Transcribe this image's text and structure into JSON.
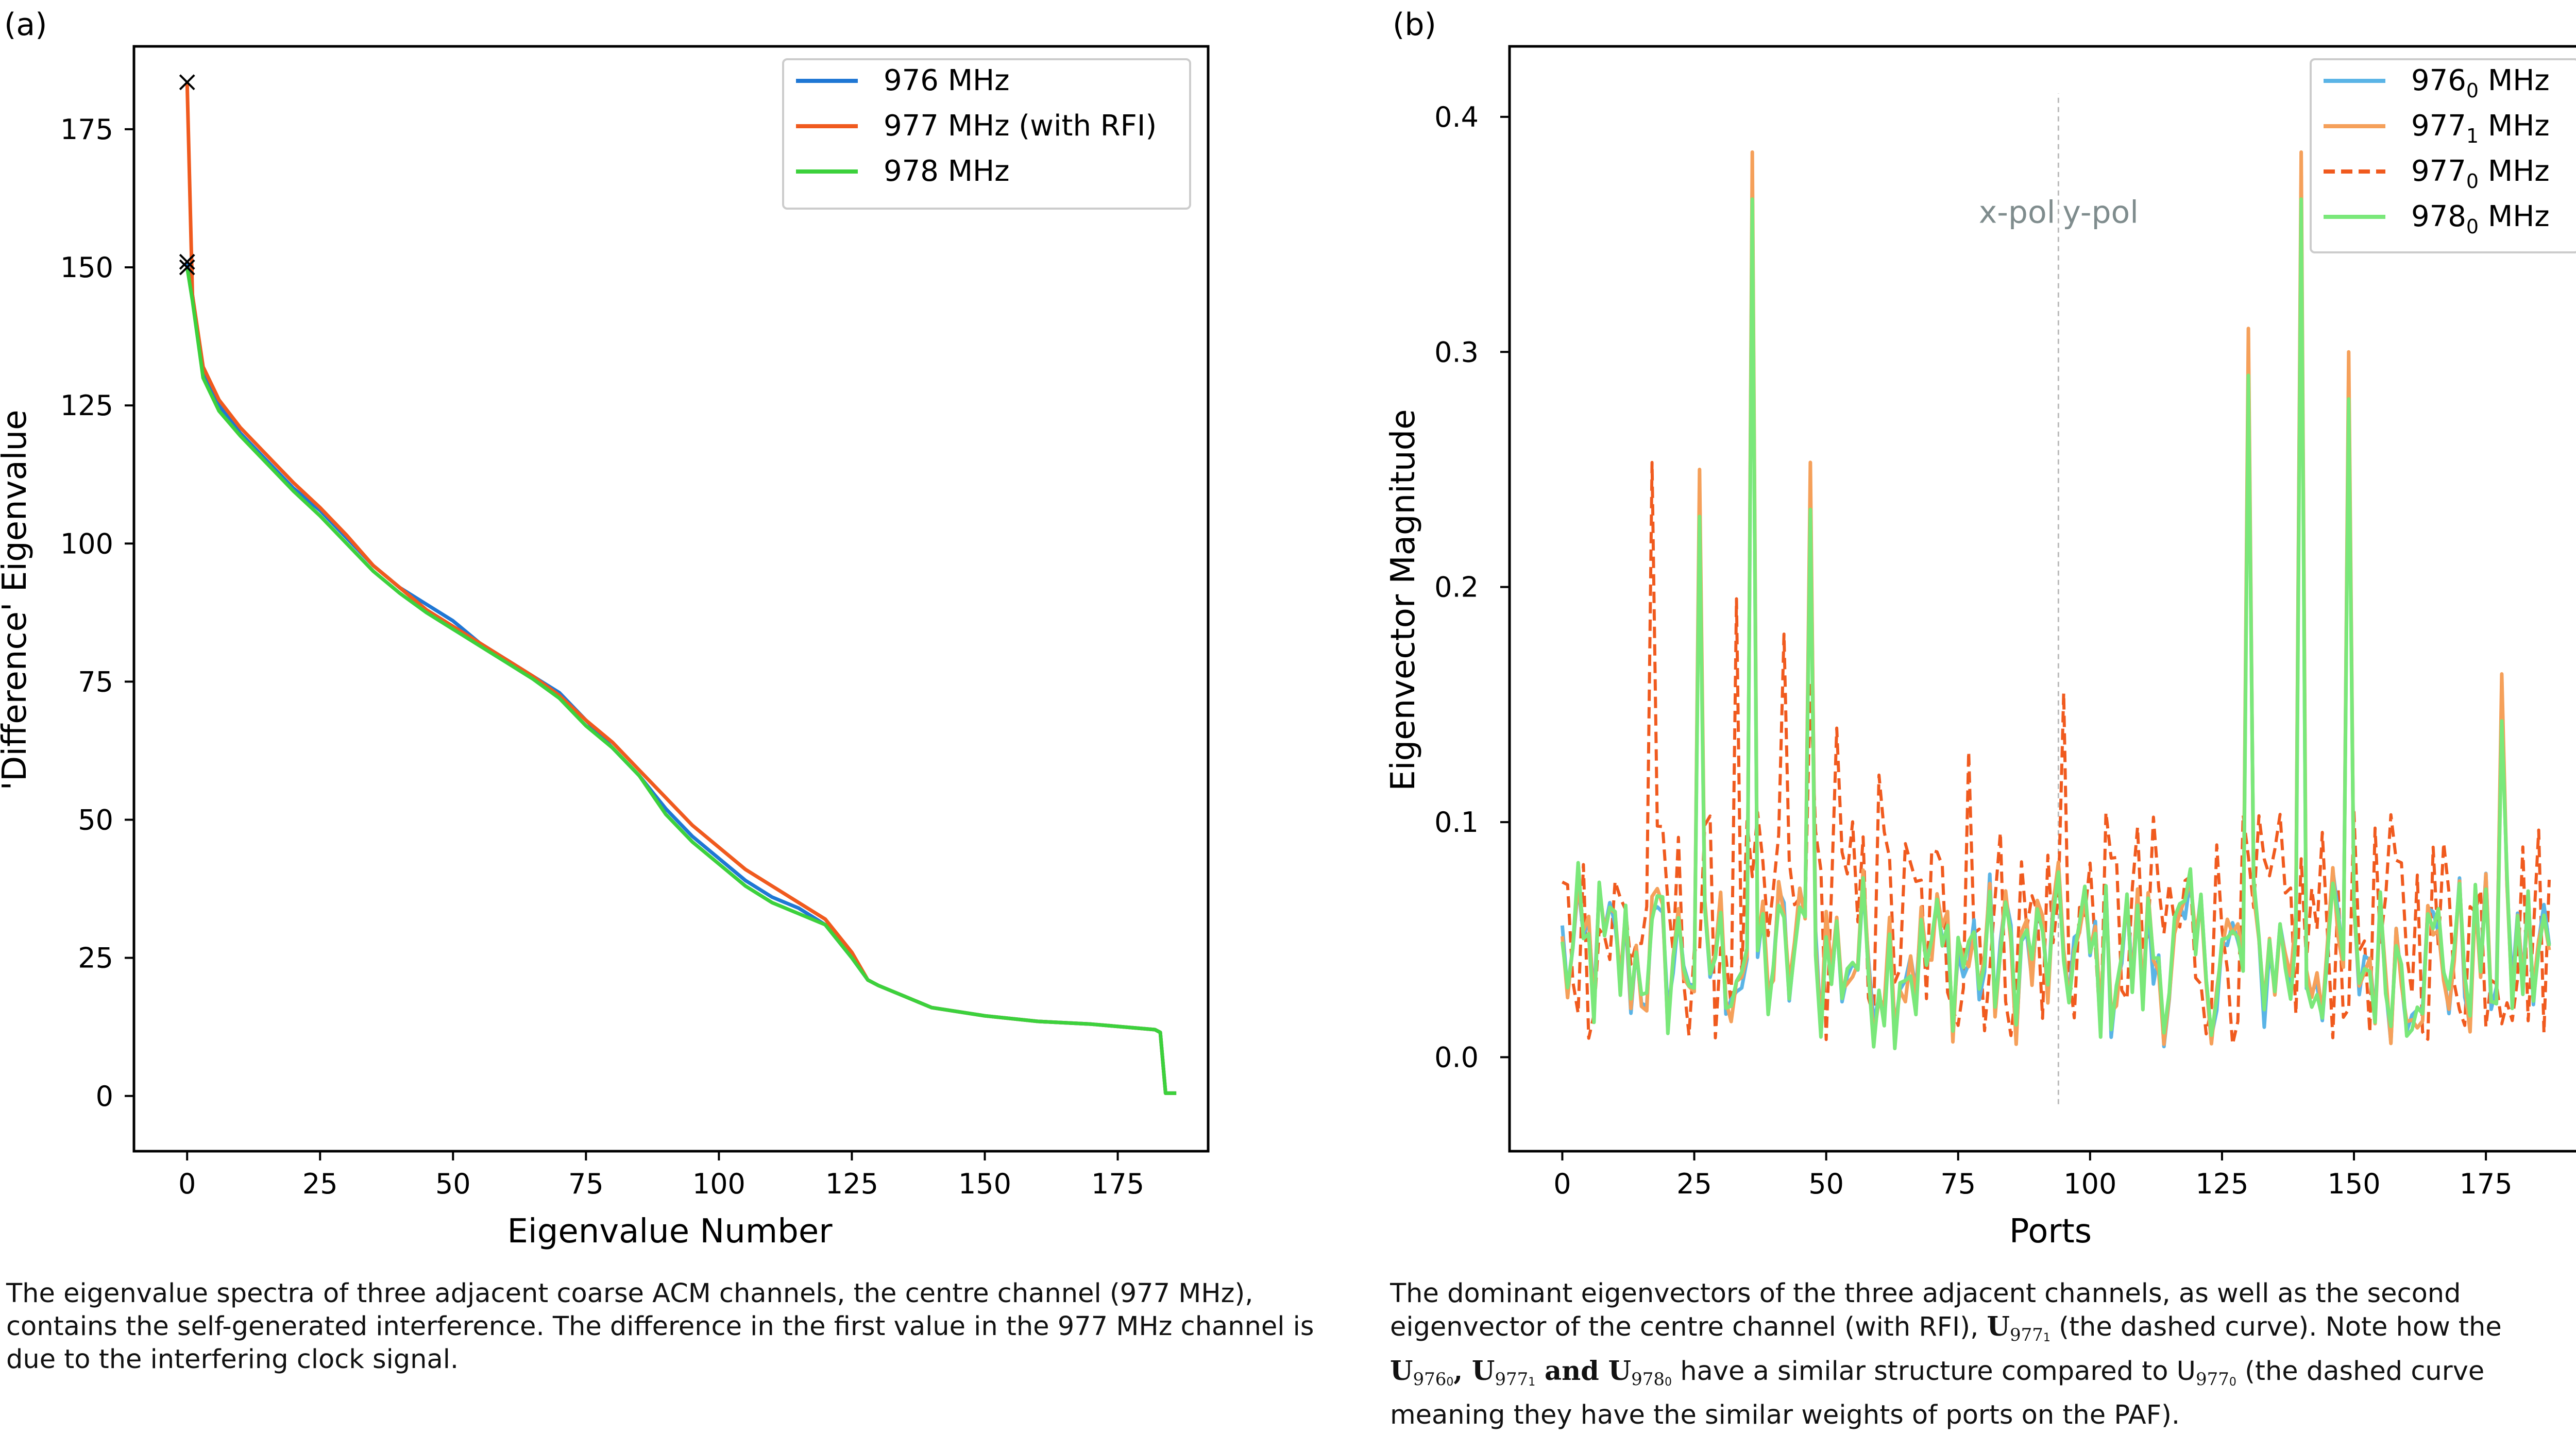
{
  "panel_a": {
    "panel_label": "(a)",
    "caption": "The eigenvalue spectra of three adjacent coarse ACM channels, the centre channel (977 MHz), contains the self-generated interference. The difference in the first value in the 977 MHz channel is due to the interfering clock signal."
  },
  "panel_b": {
    "panel_label": "(b)",
    "caption_line1": "The dominant eigenvectors of the three adjacent channels, as well as the second",
    "caption_line2a": "eigenvector of the centre channel (with RFI), ",
    "caption_U9771": "U",
    "caption_sub_9771": "977",
    "caption_line2b": " (the dashed curve). Note how the",
    "caption_line3a": "U",
    "caption_line3b": "976",
    "caption_line3c": ", U",
    "caption_line3d": "977",
    "caption_line3e": " and U",
    "caption_line3f": "978",
    "caption_line3g": " have a similar structure compared to U",
    "caption_line3h": "977",
    "caption_line3i": " (the dashed curve",
    "caption_line4": "meaning they have the similar weights of ports on the PAF)."
  },
  "chart_data": [
    {
      "type": "line",
      "title": "",
      "xlabel": "Eigenvalue Number",
      "ylabel": "'Difference' Eigenvalue",
      "xlim": [
        -10,
        192
      ],
      "ylim": [
        -10,
        190
      ],
      "xticks": [
        0,
        25,
        50,
        75,
        100,
        125,
        150,
        175
      ],
      "yticks": [
        0,
        25,
        50,
        75,
        100,
        125,
        150,
        175
      ],
      "legend_position": "top-right",
      "markers": [
        {
          "x": 0,
          "y": 183.5,
          "symbol": "x"
        },
        {
          "x": 0,
          "y": 151,
          "symbol": "x"
        },
        {
          "x": 0,
          "y": 150,
          "symbol": "x"
        }
      ],
      "series": [
        {
          "name": "976 MHz",
          "color": "#1f77d4",
          "points": [
            [
              0,
              151
            ],
            [
              1,
              145
            ],
            [
              3,
              131
            ],
            [
              6,
              125
            ],
            [
              10,
              120
            ],
            [
              15,
              115
            ],
            [
              20,
              110
            ],
            [
              25,
              106
            ],
            [
              30,
              101
            ],
            [
              35,
              96
            ],
            [
              40,
              92
            ],
            [
              45,
              89
            ],
            [
              50,
              86
            ],
            [
              55,
              82
            ],
            [
              60,
              79
            ],
            [
              65,
              76
            ],
            [
              70,
              73
            ],
            [
              75,
              68
            ],
            [
              80,
              63
            ],
            [
              85,
              58
            ],
            [
              90,
              52
            ],
            [
              95,
              47
            ],
            [
              100,
              43
            ],
            [
              105,
              39
            ],
            [
              110,
              36
            ],
            [
              115,
              34
            ],
            [
              120,
              31
            ],
            [
              125,
              25
            ],
            [
              128,
              21
            ],
            [
              130,
              20
            ],
            [
              135,
              18
            ],
            [
              140,
              16
            ],
            [
              150,
              14.5
            ],
            [
              160,
              13.5
            ],
            [
              170,
              13
            ],
            [
              182,
              12
            ],
            [
              183,
              11.5
            ],
            [
              184,
              0.5
            ],
            [
              186,
              0.5
            ]
          ]
        },
        {
          "name": "977 MHz (with RFI)",
          "color": "#f05a1e",
          "points": [
            [
              0,
              183.5
            ],
            [
              1,
              145
            ],
            [
              3,
              132
            ],
            [
              6,
              126
            ],
            [
              10,
              121
            ],
            [
              15,
              116
            ],
            [
              20,
              111
            ],
            [
              25,
              106.5
            ],
            [
              30,
              101.5
            ],
            [
              35,
              96
            ],
            [
              40,
              92
            ],
            [
              45,
              88
            ],
            [
              50,
              85
            ],
            [
              55,
              82
            ],
            [
              60,
              79
            ],
            [
              65,
              76
            ],
            [
              70,
              72.5
            ],
            [
              75,
              68
            ],
            [
              80,
              64
            ],
            [
              85,
              59
            ],
            [
              90,
              54
            ],
            [
              95,
              49
            ],
            [
              100,
              45
            ],
            [
              105,
              41
            ],
            [
              110,
              38
            ],
            [
              115,
              35
            ],
            [
              120,
              32
            ],
            [
              125,
              26
            ],
            [
              128,
              21
            ],
            [
              130,
              20
            ],
            [
              135,
              18
            ],
            [
              140,
              16
            ],
            [
              150,
              14.5
            ],
            [
              160,
              13.5
            ],
            [
              170,
              13
            ],
            [
              182,
              12
            ],
            [
              183,
              11.5
            ],
            [
              184,
              0.5
            ],
            [
              186,
              0.5
            ]
          ]
        },
        {
          "name": "978 MHz",
          "color": "#3cd13c",
          "points": [
            [
              0,
              150
            ],
            [
              1,
              144
            ],
            [
              3,
              130
            ],
            [
              6,
              124
            ],
            [
              10,
              119.5
            ],
            [
              15,
              114.5
            ],
            [
              20,
              109.5
            ],
            [
              25,
              105
            ],
            [
              30,
              100
            ],
            [
              35,
              95
            ],
            [
              40,
              91
            ],
            [
              45,
              87.5
            ],
            [
              50,
              84.5
            ],
            [
              55,
              81.5
            ],
            [
              60,
              78.5
            ],
            [
              65,
              75.5
            ],
            [
              70,
              72
            ],
            [
              75,
              67
            ],
            [
              80,
              63
            ],
            [
              85,
              58
            ],
            [
              90,
              51
            ],
            [
              95,
              46
            ],
            [
              100,
              42
            ],
            [
              105,
              38
            ],
            [
              110,
              35
            ],
            [
              115,
              33
            ],
            [
              120,
              31
            ],
            [
              125,
              25
            ],
            [
              128,
              21
            ],
            [
              130,
              20
            ],
            [
              135,
              18
            ],
            [
              140,
              16
            ],
            [
              150,
              14.5
            ],
            [
              160,
              13.5
            ],
            [
              170,
              13
            ],
            [
              182,
              12
            ],
            [
              183,
              11.5
            ],
            [
              184,
              0.5
            ],
            [
              186,
              0.5
            ]
          ]
        }
      ]
    },
    {
      "type": "line",
      "title": "",
      "xlabel": "Ports",
      "ylabel": "Eigenvector Magnitude",
      "xlim": [
        -10,
        195
      ],
      "ylim": [
        -0.04,
        0.43
      ],
      "xticks": [
        0,
        25,
        50,
        75,
        100,
        125,
        150,
        175
      ],
      "yticks": [
        0.0,
        0.1,
        0.2,
        0.3,
        0.4
      ],
      "ytick_labels": [
        "0.0",
        "0.1",
        "0.2",
        "0.3",
        "0.4"
      ],
      "divider": {
        "x": 94,
        "ymin": -0.02,
        "ymax": 0.41,
        "left_text": "x-pol",
        "right_text": "y-pol",
        "text_y": 0.355
      },
      "legend_position": "top-right",
      "series": [
        {
          "name_base": "976",
          "name_sub": "0",
          "name_unit": " MHz",
          "color": "#5ab4e6",
          "dashed": false
        },
        {
          "name_base": "977",
          "name_sub": "1",
          "name_unit": " MHz",
          "color": "#f5a05a",
          "dashed": false
        },
        {
          "name_base": "977",
          "name_sub": "0",
          "name_unit": " MHz",
          "color": "#f05a1e",
          "dashed": true
        },
        {
          "name_base": "978",
          "name_sub": "0",
          "name_unit": " MHz",
          "color": "#7ae87a",
          "dashed": false
        }
      ],
      "peaks": {
        "x": [
          26,
          36,
          47,
          130,
          140,
          149,
          178
        ],
        "y": [
          0.25,
          0.385,
          0.253,
          0.31,
          0.385,
          0.3,
          0.163
        ]
      },
      "dashed_peaks": {
        "x": [
          17,
          33,
          42,
          47,
          52,
          60,
          77,
          95
        ],
        "y": [
          0.253,
          0.195,
          0.18,
          0.16,
          0.14,
          0.12,
          0.13,
          0.155
        ]
      }
    }
  ]
}
